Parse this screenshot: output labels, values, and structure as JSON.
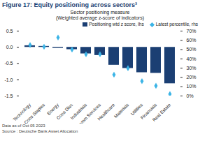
{
  "chart_data": {
    "type": "bar",
    "title": "Figure 17: Equity positioning across sectors³",
    "subtitle": "Sector positioning measure",
    "annotations": [
      "(Weighted average z-score of indicators)",
      "Data as of Oct 05 2023"
    ],
    "source": "Source : Deutsche Bank Asset Allocation",
    "categories": [
      "Technology",
      "Cons Staples",
      "Energy",
      "Cons Disc",
      "Industrials",
      "Comm Services",
      "Healthcare",
      "Materials",
      "Utilities",
      "Financials",
      "Real Estate"
    ],
    "series": [
      {
        "name": "Positioning wtd z score, lhs",
        "type": "bar",
        "color": "#1b3f73",
        "values": [
          0.05,
          0.03,
          -0.03,
          -0.07,
          -0.2,
          -0.25,
          -0.55,
          -0.65,
          -0.78,
          -0.8,
          -1.12
        ]
      },
      {
        "name": "Latest percentile, rhs",
        "type": "scatter",
        "marker": "diamond",
        "color": "#3bb4e6",
        "axis": "y2",
        "values": [
          55,
          53,
          63,
          50,
          45,
          45,
          23,
          30,
          16,
          11,
          2
        ]
      }
    ],
    "ylim": [
      -1.5,
      0.5
    ],
    "yticks": [
      -1.5,
      {
        "value": -1,
        "label": "-1.0"
      },
      -0.5,
      {
        "value": 0,
        "label": "0.0"
      },
      0.5
    ],
    "y2lim": [
      0,
      70
    ],
    "y2ticks": [
      {
        "value": 0,
        "label": "0%"
      },
      {
        "value": 10,
        "label": "10%"
      },
      {
        "value": 20,
        "label": "20%"
      },
      {
        "value": 30,
        "label": "30%"
      },
      {
        "value": 40,
        "label": "40%"
      },
      {
        "value": 50,
        "label": "50%"
      },
      {
        "value": 60,
        "label": "60%"
      },
      {
        "value": 70,
        "label": "70%"
      }
    ],
    "grid": false,
    "legend": "top-right"
  }
}
